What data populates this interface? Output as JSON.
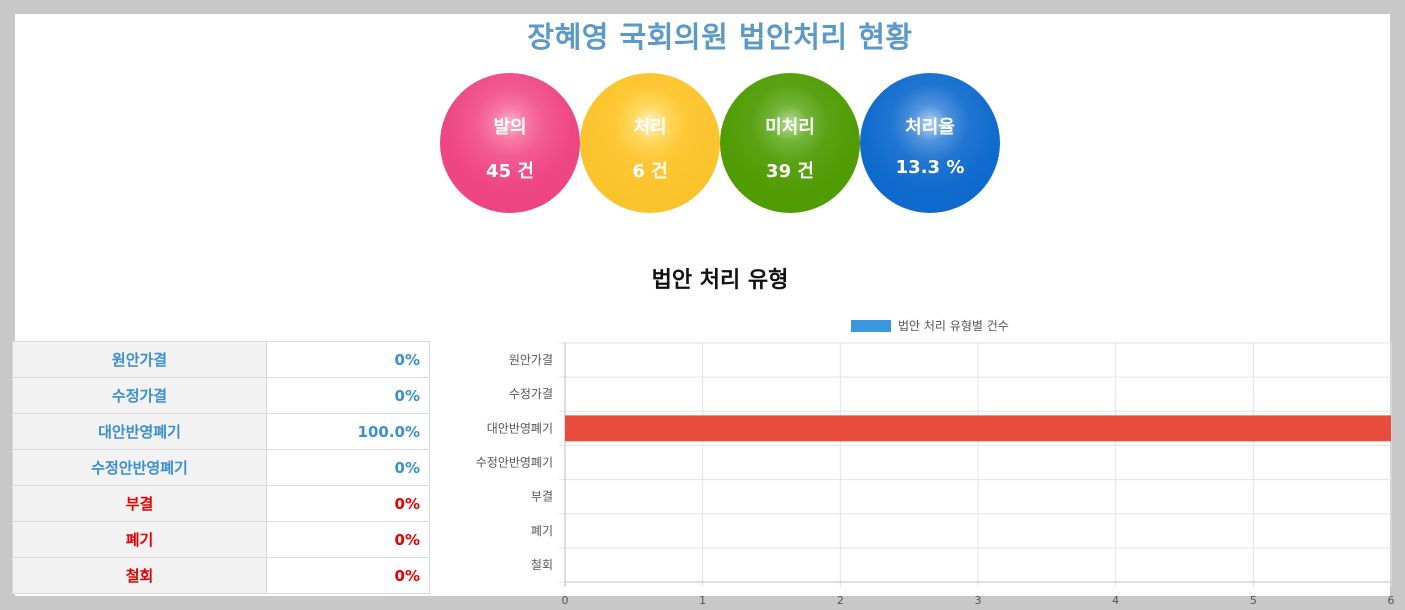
{
  "title": "장혜영 국회의원 법안처리 현황",
  "summary": [
    {
      "label": "발의",
      "value": "45 건"
    },
    {
      "label": "처리",
      "value": "6 건"
    },
    {
      "label": "미처리",
      "value": "39 건"
    },
    {
      "label": "처리율",
      "value": "13.3 %"
    }
  ],
  "section_title": "법안 처리 유형",
  "table": [
    {
      "name": "원안가결",
      "pct": "0%",
      "color": "#3a8fd0"
    },
    {
      "name": "수정가결",
      "pct": "0%",
      "color": "#3a8fd0"
    },
    {
      "name": "대안반영폐기",
      "pct": "100.0%",
      "color": "#3a8fd0"
    },
    {
      "name": "수정안반영폐기",
      "pct": "0%",
      "color": "#3a8fd0"
    },
    {
      "name": "부결",
      "pct": "0%",
      "color": "#e60000"
    },
    {
      "name": "폐기",
      "pct": "0%",
      "color": "#e60000"
    },
    {
      "name": "철회",
      "pct": "0%",
      "color": "#e60000"
    }
  ],
  "chart_data": {
    "type": "bar",
    "orientation": "horizontal",
    "categories": [
      "원안가결",
      "수정가결",
      "대안반영폐기",
      "수정안반영폐기",
      "부결",
      "폐기",
      "철회"
    ],
    "series": [
      {
        "name": "법안 처리 유형별 건수",
        "values": [
          0,
          0,
          6,
          0,
          0,
          0,
          0
        ],
        "legend_color": "#3a97dd",
        "bar_color": "#e74c3c"
      }
    ],
    "xlim": [
      0,
      6
    ],
    "xticks": [
      0,
      1,
      2,
      3,
      4,
      5,
      6
    ],
    "grid": true,
    "legend": "top"
  }
}
